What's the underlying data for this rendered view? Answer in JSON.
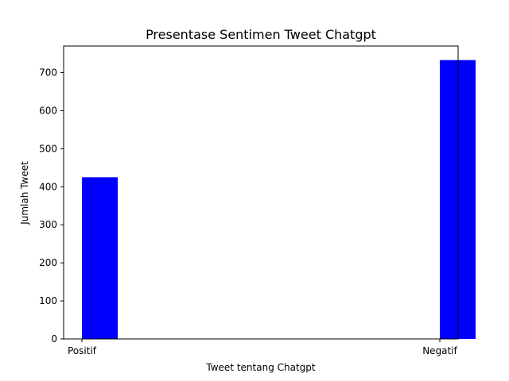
{
  "chart_data": {
    "type": "bar",
    "title": "Presentase Sentimen Tweet Chatgpt",
    "xlabel": "Tweet tentang Chatgpt",
    "ylabel": "Jumlah Tweet",
    "categories": [
      "Positif",
      "Negatif"
    ],
    "values": [
      425,
      733
    ],
    "ylim": [
      0,
      770
    ],
    "yticks": [
      0,
      100,
      200,
      300,
      400,
      500,
      600,
      700
    ],
    "bar_color": "#0000ff",
    "grid": false,
    "legend": "none"
  }
}
